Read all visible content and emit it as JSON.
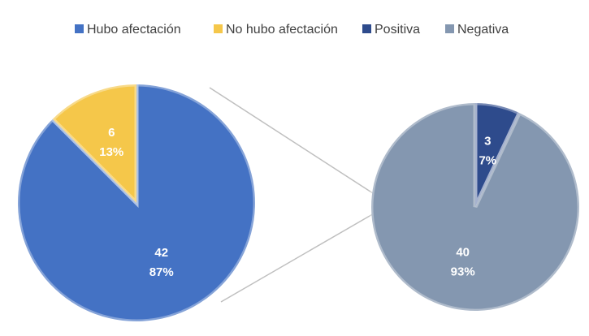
{
  "chart_data": [
    {
      "type": "pie",
      "categories": [
        "Hubo afectación",
        "No hubo afectación"
      ],
      "values": [
        42,
        6
      ],
      "percent_values": [
        87,
        13
      ],
      "percent_labels": [
        "87%",
        "13%"
      ],
      "colors": [
        "#4472c4",
        "#f5c74a"
      ]
    },
    {
      "type": "pie",
      "categories": [
        "Positiva",
        "Negativa"
      ],
      "values": [
        3,
        40
      ],
      "percent_values": [
        7,
        93
      ],
      "percent_labels": [
        "7%",
        "93%"
      ],
      "colors": [
        "#2e4b8c",
        "#8497b0"
      ]
    }
  ]
}
